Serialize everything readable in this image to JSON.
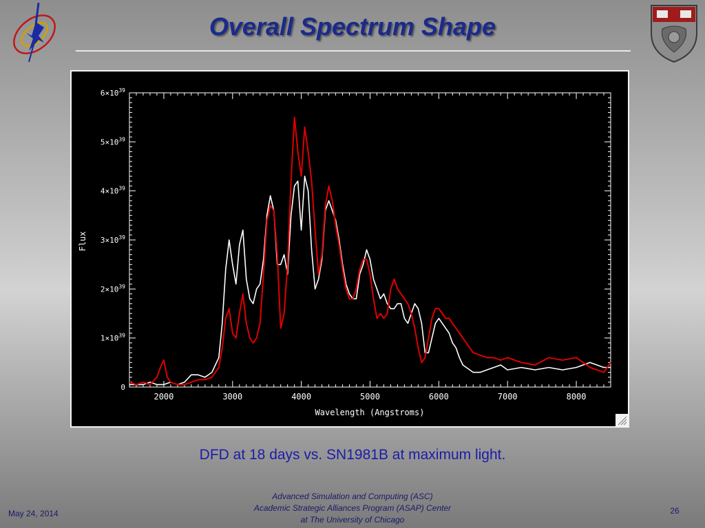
{
  "slide": {
    "title": "Overall Spectrum Shape",
    "caption": "DFD at 18 days vs. SN1981B at maximum light.",
    "footer": {
      "date": "May 24, 2014",
      "line1": "Advanced Simulation and Computing (ASC)",
      "line2": "Academic Strategic Alliances Program (ASAP) Center",
      "line3": "at The University of Chicago",
      "page": "26"
    }
  },
  "icons": {
    "left_logo": "flash-center-logo",
    "right_logo": "university-of-chicago-shield"
  },
  "colors": {
    "title": "#1a2a8c",
    "caption": "#1c1ca8",
    "plot_background": "#000000",
    "axes": "#ffffff",
    "series_white": "#ffffff",
    "series_red": "#e00000"
  },
  "chart_data": {
    "type": "line",
    "title": "",
    "xlabel": "Wavelength (Angstroms)",
    "ylabel": "Flux",
    "xlim": [
      1500,
      8500
    ],
    "ylim": [
      0,
      6e+39
    ],
    "xticks": [
      {
        "value": 2000,
        "label": "2000"
      },
      {
        "value": 3000,
        "label": "3000"
      },
      {
        "value": 4000,
        "label": "4000"
      },
      {
        "value": 5000,
        "label": "5000"
      },
      {
        "value": 6000,
        "label": "6000"
      },
      {
        "value": 7000,
        "label": "7000"
      },
      {
        "value": 8000,
        "label": "8000"
      }
    ],
    "yticks": [
      {
        "value": 0,
        "mant": "0",
        "exp": ""
      },
      {
        "value": 1e+39,
        "mant": "1×10",
        "exp": "39"
      },
      {
        "value": 2e+39,
        "mant": "2×10",
        "exp": "39"
      },
      {
        "value": 3e+39,
        "mant": "3×10",
        "exp": "39"
      },
      {
        "value": 4e+39,
        "mant": "4×10",
        "exp": "39"
      },
      {
        "value": 5e+39,
        "mant": "5×10",
        "exp": "39"
      },
      {
        "value": 6e+39,
        "mant": "6×10",
        "exp": "39"
      }
    ],
    "grid": false,
    "series": [
      {
        "color": "#ffffff",
        "x": [
          1500,
          1600,
          1700,
          1800,
          1900,
          2000,
          2100,
          2200,
          2300,
          2400,
          2500,
          2600,
          2700,
          2800,
          2850,
          2900,
          2950,
          3000,
          3050,
          3100,
          3150,
          3200,
          3250,
          3300,
          3350,
          3400,
          3450,
          3500,
          3550,
          3600,
          3650,
          3700,
          3750,
          3800,
          3850,
          3900,
          3950,
          4000,
          4050,
          4100,
          4150,
          4200,
          4250,
          4300,
          4350,
          4400,
          4450,
          4500,
          4550,
          4600,
          4650,
          4700,
          4750,
          4800,
          4850,
          4900,
          4950,
          5000,
          5050,
          5100,
          5150,
          5200,
          5250,
          5300,
          5350,
          5400,
          5450,
          5500,
          5550,
          5600,
          5650,
          5700,
          5750,
          5800,
          5850,
          5900,
          5950,
          6000,
          6050,
          6100,
          6150,
          6200,
          6250,
          6300,
          6350,
          6400,
          6450,
          6500,
          6600,
          6700,
          6800,
          6900,
          7000,
          7200,
          7400,
          7600,
          7800,
          8000,
          8200,
          8400,
          8500
        ],
        "y": [
          0.05,
          0.05,
          0.05,
          0.1,
          0.05,
          0.05,
          0.1,
          0.05,
          0.1,
          0.25,
          0.25,
          0.2,
          0.3,
          0.6,
          1.3,
          2.4,
          3.0,
          2.5,
          2.1,
          2.9,
          3.2,
          2.2,
          1.8,
          1.7,
          2.0,
          2.1,
          2.6,
          3.5,
          3.9,
          3.6,
          2.5,
          2.5,
          2.7,
          2.3,
          3.5,
          4.1,
          4.2,
          3.2,
          4.3,
          4.0,
          2.8,
          2.0,
          2.2,
          2.6,
          3.6,
          3.8,
          3.6,
          3.4,
          3.0,
          2.5,
          2.1,
          1.9,
          1.8,
          1.8,
          2.3,
          2.5,
          2.8,
          2.6,
          2.2,
          2.0,
          1.8,
          1.9,
          1.7,
          1.6,
          1.6,
          1.7,
          1.7,
          1.4,
          1.3,
          1.5,
          1.7,
          1.6,
          1.3,
          0.7,
          0.7,
          1.0,
          1.3,
          1.4,
          1.3,
          1.2,
          1.1,
          0.9,
          0.8,
          0.6,
          0.45,
          0.4,
          0.35,
          0.3,
          0.3,
          0.35,
          0.4,
          0.45,
          0.35,
          0.4,
          0.35,
          0.4,
          0.35,
          0.4,
          0.5,
          0.4,
          0.4
        ]
      },
      {
        "color": "#e00000",
        "x": [
          1500,
          1600,
          1700,
          1800,
          1900,
          1950,
          2000,
          2050,
          2100,
          2200,
          2300,
          2400,
          2500,
          2600,
          2700,
          2800,
          2850,
          2900,
          2950,
          3000,
          3050,
          3100,
          3150,
          3200,
          3250,
          3300,
          3350,
          3400,
          3450,
          3500,
          3550,
          3600,
          3650,
          3700,
          3750,
          3800,
          3850,
          3900,
          3950,
          4000,
          4050,
          4100,
          4150,
          4200,
          4250,
          4300,
          4350,
          4400,
          4450,
          4500,
          4550,
          4600,
          4650,
          4700,
          4750,
          4800,
          4850,
          4900,
          4950,
          5000,
          5050,
          5100,
          5150,
          5200,
          5250,
          5300,
          5350,
          5400,
          5450,
          5500,
          5550,
          5600,
          5650,
          5700,
          5750,
          5800,
          5850,
          5900,
          5950,
          6000,
          6050,
          6100,
          6150,
          6200,
          6250,
          6300,
          6350,
          6400,
          6450,
          6500,
          6600,
          6700,
          6800,
          6900,
          7000,
          7200,
          7400,
          7600,
          7800,
          8000,
          8200,
          8400,
          8500
        ],
        "y": [
          0.1,
          0.05,
          0.1,
          0.05,
          0.2,
          0.4,
          0.55,
          0.2,
          0.1,
          0.05,
          0.05,
          0.1,
          0.15,
          0.15,
          0.2,
          0.4,
          0.8,
          1.4,
          1.6,
          1.1,
          1.0,
          1.5,
          1.9,
          1.3,
          1.0,
          0.9,
          1.0,
          1.3,
          2.3,
          3.4,
          3.7,
          3.6,
          2.7,
          1.2,
          1.5,
          2.5,
          4.2,
          5.5,
          4.8,
          4.3,
          5.3,
          4.8,
          4.2,
          3.2,
          2.3,
          2.7,
          3.7,
          4.1,
          3.8,
          3.3,
          2.9,
          2.4,
          2.0,
          1.8,
          1.8,
          2.0,
          2.4,
          2.6,
          2.6,
          2.3,
          1.8,
          1.4,
          1.5,
          1.4,
          1.5,
          2.0,
          2.2,
          2.0,
          1.9,
          1.8,
          1.7,
          1.5,
          1.2,
          0.8,
          0.5,
          0.6,
          1.0,
          1.4,
          1.6,
          1.6,
          1.5,
          1.4,
          1.4,
          1.3,
          1.2,
          1.1,
          1.0,
          0.9,
          0.8,
          0.7,
          0.65,
          0.6,
          0.6,
          0.55,
          0.6,
          0.5,
          0.45,
          0.6,
          0.55,
          0.6,
          0.4,
          0.3,
          0.5
        ]
      }
    ]
  }
}
